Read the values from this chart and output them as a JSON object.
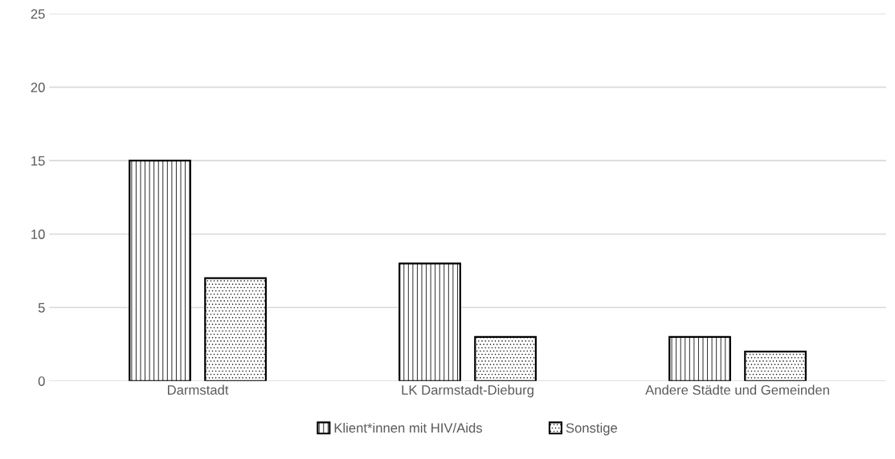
{
  "chart_data": {
    "type": "bar",
    "categories": [
      "Darmstadt",
      "LK Darmstadt-Dieburg",
      "Andere Städte und Gemeinden"
    ],
    "series": [
      {
        "name": "Klient*innen mit HIV/Aids",
        "color": "#ffffff",
        "values": [
          15,
          8,
          3
        ]
      },
      {
        "name": "Sonstige",
        "color": "#ffffff",
        "values": [
          7,
          3,
          2
        ]
      }
    ],
    "ylim": [
      0,
      25
    ],
    "yticks": [
      0,
      5,
      10,
      15,
      20,
      25
    ],
    "grid": "y",
    "legend": "bottom"
  }
}
